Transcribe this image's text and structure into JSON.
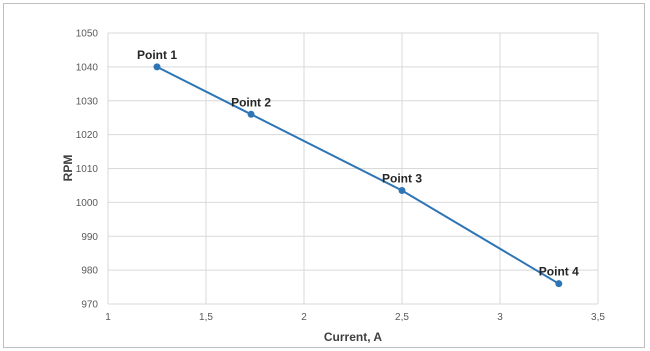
{
  "chart_data": {
    "type": "line",
    "title": "",
    "xlabel": "Current, A",
    "ylabel": "RPM",
    "xlim": [
      1,
      3.5
    ],
    "ylim": [
      970,
      1050
    ],
    "x_ticks": [
      1,
      1.5,
      2,
      2.5,
      3,
      3.5
    ],
    "x_tick_labels": [
      "1",
      "1,5",
      "2",
      "2,5",
      "3",
      "3,5"
    ],
    "y_ticks": [
      970,
      980,
      990,
      1000,
      1010,
      1020,
      1030,
      1040,
      1050
    ],
    "y_tick_labels": [
      "970",
      "980",
      "990",
      "1000",
      "1010",
      "1020",
      "1030",
      "1040",
      "1050"
    ],
    "grid": true,
    "legend": "none",
    "series": [
      {
        "color": "#2e75b6",
        "x": [
          1.25,
          1.73,
          2.5,
          3.3
        ],
        "y": [
          1040,
          1026,
          1003.5,
          976
        ]
      }
    ],
    "point_labels": [
      "Point 1",
      "Point 2",
      "Point 3",
      "Point 4"
    ]
  }
}
